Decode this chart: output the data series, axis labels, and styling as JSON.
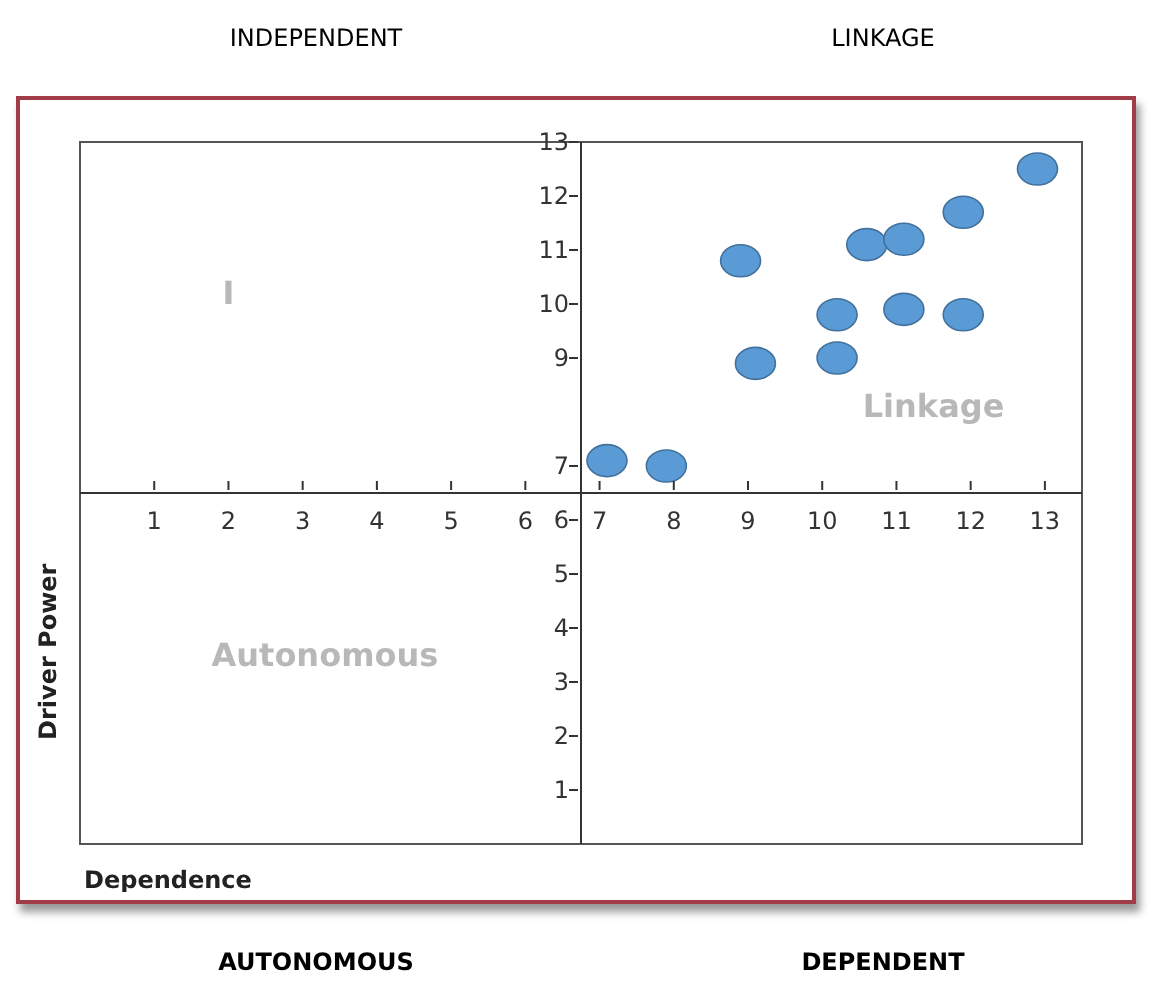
{
  "chart_data": {
    "type": "scatter",
    "annotations": [
      "INDEPENDENT",
      "LINKAGE",
      "AUTONOMOUS",
      "DEPENDENT",
      "I",
      "Linkage",
      "Autonomous"
    ],
    "xlabel": "Dependence",
    "ylabel": "Driver Power",
    "series": [
      {
        "color": "#5b9bd5",
        "x": [
          7.1,
          7.9,
          8.9,
          9.1,
          10.2,
          10.2,
          10.6,
          11.1,
          11.1,
          11.9,
          11.9,
          12.9
        ],
        "values": [
          7.1,
          7.0,
          10.8,
          8.9,
          9.8,
          9.0,
          11.1,
          11.2,
          9.9,
          11.7,
          9.8,
          12.5
        ]
      }
    ],
    "marker": "circle",
    "xlim": [
      0,
      13.5
    ],
    "ylim": [
      0,
      13
    ],
    "xticks": [
      1,
      2,
      3,
      4,
      5,
      6,
      7,
      8,
      9,
      10,
      11,
      12,
      13
    ],
    "yticks": [
      1,
      2,
      3,
      4,
      5,
      6,
      7,
      9,
      10,
      11,
      12,
      13
    ],
    "grid": false,
    "legend": false
  }
}
